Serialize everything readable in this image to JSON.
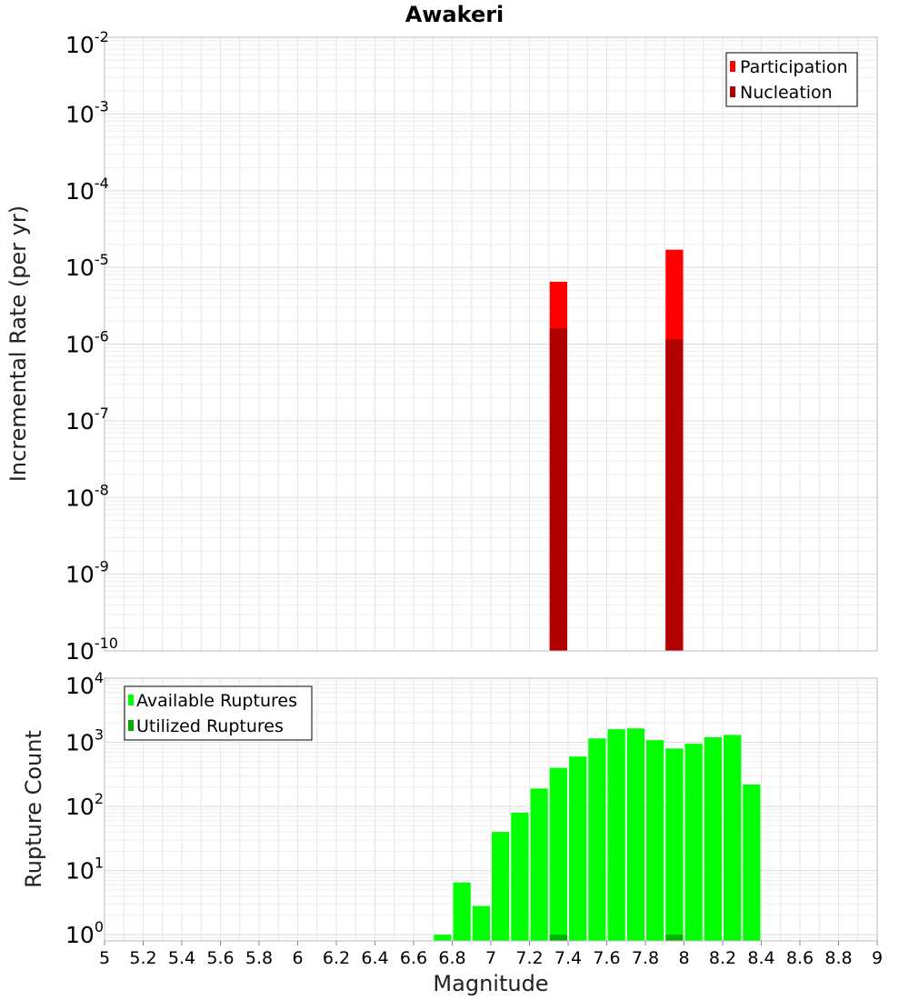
{
  "chart_data": [
    {
      "type": "bar",
      "title": "Awakeri",
      "xlabel": "",
      "ylabel": "Incremental Rate (per yr)",
      "yscale": "log",
      "xlim": [
        5,
        9
      ],
      "ylim": [
        1e-10,
        0.01
      ],
      "ytick_exponents": [
        -10,
        -9,
        -8,
        -7,
        -6,
        -5,
        -4,
        -3,
        -2
      ],
      "grid": true,
      "legend": {
        "placement": "top-right",
        "entries": [
          "Participation",
          "Nucleation"
        ]
      },
      "bar_width": 0.1,
      "series": [
        {
          "name": "Participation",
          "color": "#ff0000",
          "x": [
            7.35,
            7.95
          ],
          "values": [
            6.5e-06,
            1.7e-05
          ]
        },
        {
          "name": "Nucleation",
          "color": "#b00000",
          "x": [
            7.35,
            7.95
          ],
          "values": [
            1.6e-06,
            1.15e-06
          ]
        }
      ]
    },
    {
      "type": "bar",
      "title": "",
      "xlabel": "Magnitude",
      "ylabel": "Rupture Count",
      "yscale": "log",
      "xlim": [
        5,
        9
      ],
      "ylim": [
        0.8,
        10000
      ],
      "ytick_exponents": [
        0,
        1,
        2,
        3,
        4
      ],
      "xticks": [
        "5",
        "5.2",
        "5.4",
        "5.6",
        "5.8",
        "6",
        "6.2",
        "6.4",
        "6.6",
        "6.8",
        "7",
        "7.2",
        "7.4",
        "7.6",
        "7.8",
        "8",
        "8.2",
        "8.4",
        "8.6",
        "8.8",
        "9"
      ],
      "grid": true,
      "legend": {
        "placement": "top-left",
        "entries": [
          "Available Ruptures",
          "Utilized Ruptures"
        ]
      },
      "bar_width": 0.1,
      "series": [
        {
          "name": "Available Ruptures",
          "color": "#00ff00",
          "x": [
            6.75,
            6.85,
            6.95,
            7.05,
            7.15,
            7.25,
            7.35,
            7.45,
            7.55,
            7.65,
            7.75,
            7.85,
            7.95,
            8.05,
            8.15,
            8.25,
            8.35
          ],
          "values": [
            1,
            6.5,
            2.8,
            40,
            80,
            190,
            400,
            600,
            1150,
            1600,
            1650,
            1080,
            800,
            950,
            1200,
            1300,
            220
          ]
        },
        {
          "name": "Utilized Ruptures",
          "color": "#00b000",
          "x": [
            7.35,
            7.95
          ],
          "values": [
            1,
            1
          ]
        }
      ]
    }
  ]
}
